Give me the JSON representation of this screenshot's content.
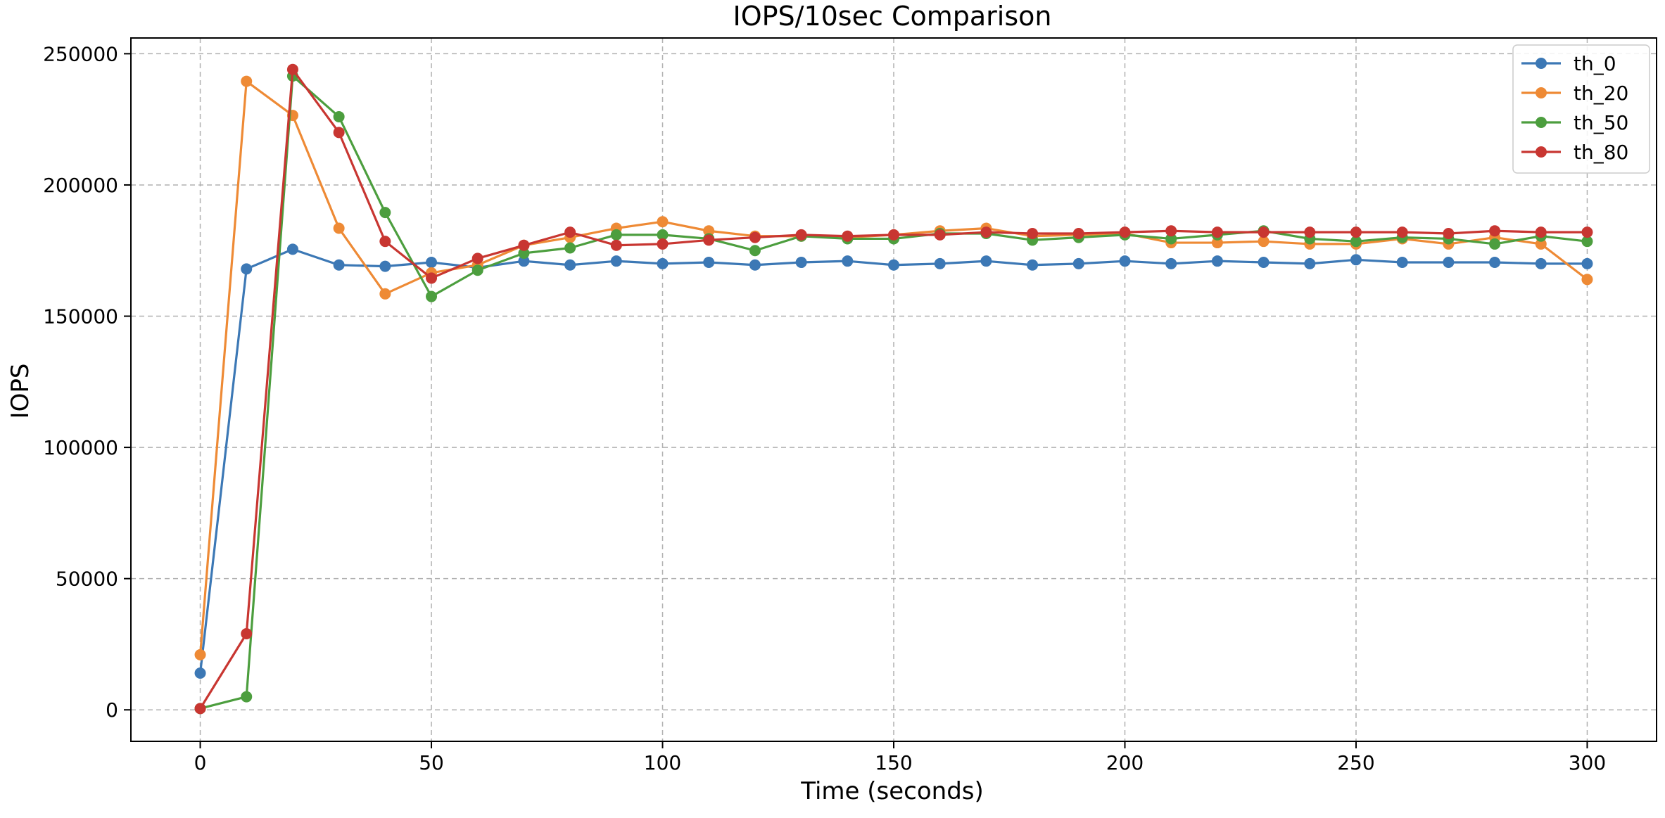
{
  "chart_data": {
    "type": "line",
    "title": "IOPS/10sec Comparison",
    "xlabel": "Time (seconds)",
    "ylabel": "IOPS",
    "xlim": [
      -15,
      315
    ],
    "ylim": [
      -12000,
      256000
    ],
    "xticks": [
      0,
      50,
      100,
      150,
      200,
      250,
      300
    ],
    "yticks": [
      0,
      50000,
      100000,
      150000,
      200000,
      250000
    ],
    "grid": true,
    "legend_position": "top-right",
    "x": [
      0,
      10,
      20,
      30,
      40,
      50,
      60,
      70,
      80,
      90,
      100,
      110,
      120,
      130,
      140,
      150,
      160,
      170,
      180,
      190,
      200,
      210,
      220,
      230,
      240,
      250,
      260,
      270,
      280,
      290,
      300
    ],
    "series": [
      {
        "name": "th_0",
        "color": "#3c78b5",
        "values": [
          14000,
          168000,
          175500,
          169500,
          169000,
          170500,
          168500,
          171000,
          169500,
          171000,
          170000,
          170500,
          169500,
          170500,
          171000,
          169500,
          170000,
          171000,
          169500,
          170000,
          171000,
          170000,
          171000,
          170500,
          170000,
          171500,
          170500,
          170500,
          170500,
          170000,
          170000
        ]
      },
      {
        "name": "th_20",
        "color": "#ee8a35",
        "values": [
          21000,
          239500,
          226500,
          183500,
          158500,
          166500,
          169500,
          177000,
          180000,
          183500,
          186000,
          182500,
          180500,
          180500,
          180000,
          181000,
          182500,
          183500,
          180500,
          181000,
          181500,
          178000,
          178000,
          178500,
          177500,
          177500,
          179500,
          177500,
          180000,
          177500,
          164000
        ]
      },
      {
        "name": "th_50",
        "color": "#4c9e3e",
        "values": [
          500,
          5000,
          241500,
          226000,
          189500,
          157500,
          167500,
          174000,
          176000,
          181000,
          181000,
          179500,
          175000,
          180500,
          179500,
          179500,
          181500,
          181500,
          179000,
          180000,
          181000,
          179500,
          181000,
          182500,
          179500,
          178500,
          180000,
          179500,
          177500,
          180500,
          178500
        ]
      },
      {
        "name": "th_80",
        "color": "#c83631",
        "values": [
          500,
          29000,
          244000,
          220000,
          178500,
          164500,
          172000,
          177000,
          182000,
          177000,
          177500,
          179000,
          180000,
          181000,
          180500,
          181000,
          181000,
          182000,
          181500,
          181500,
          182000,
          182500,
          182000,
          182000,
          182000,
          182000,
          182000,
          181500,
          182500,
          182000,
          182000
        ]
      }
    ]
  }
}
